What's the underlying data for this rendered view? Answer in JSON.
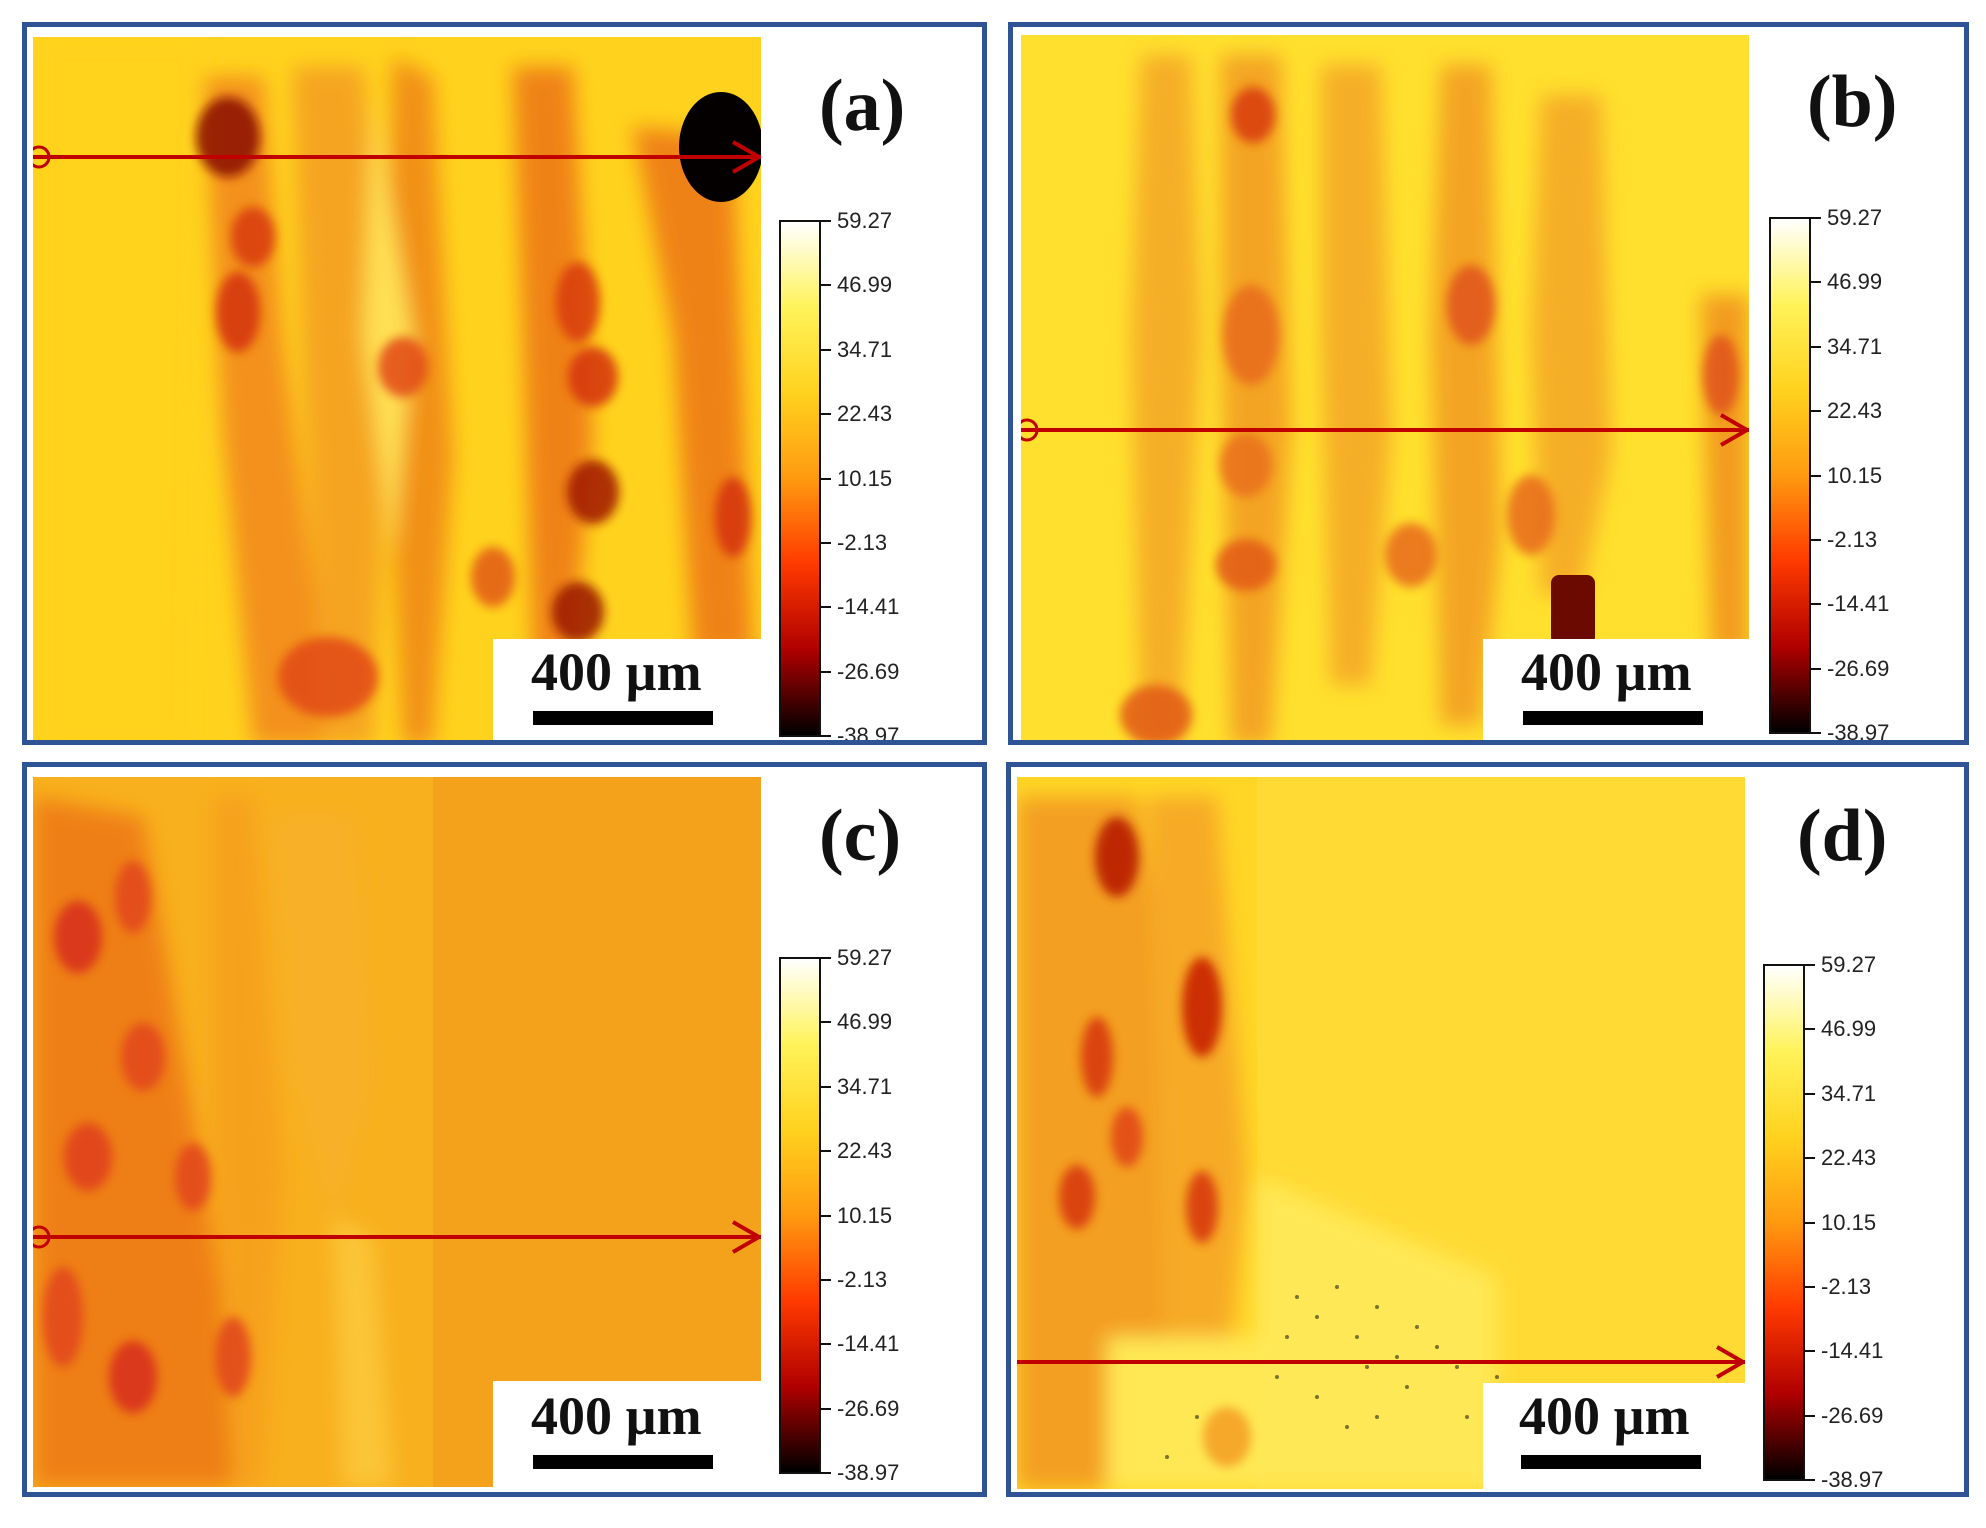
{
  "panels": [
    {
      "label": "(a)",
      "scale_text": "400 µm"
    },
    {
      "label": "(b)",
      "scale_text": "400 µm"
    },
    {
      "label": "(c)",
      "scale_text": "400 µm"
    },
    {
      "label": "(d)",
      "scale_text": "400 µm"
    }
  ],
  "colorbar": {
    "ticks": [
      "59.27",
      "46.99",
      "34.71",
      "22.43",
      "10.15",
      "-2.13",
      "-14.41",
      "-26.69",
      "-38.97"
    ],
    "gradient_colors": [
      "#ffffff",
      "#fff35a",
      "#ffd21e",
      "#ff9a10",
      "#ff3a00",
      "#b00000",
      "#000000"
    ]
  },
  "colors": {
    "panel_border": "#2f5496",
    "profile_line": "#c00000",
    "map_base": "#ffd21e"
  }
}
